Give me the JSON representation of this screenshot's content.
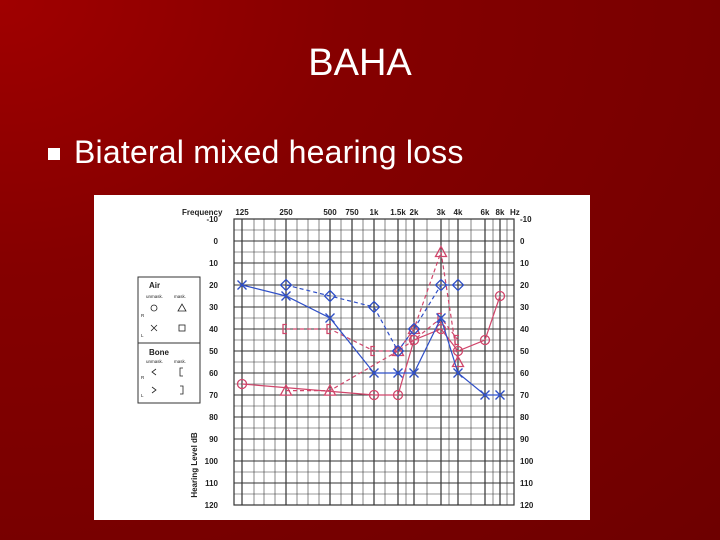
{
  "slide": {
    "title": "BAHA",
    "bullet": "Biateral mixed hearing loss"
  },
  "colors": {
    "background": "#850000",
    "right_ear": "#d0456a",
    "left_ear": "#2f4fc7",
    "grid": "#333333"
  },
  "chart_data": {
    "type": "line",
    "title": "",
    "xlabel": "Frequency",
    "ylabel": "Hearing Level dB",
    "x_unit": "Hz",
    "x_ticks": [
      "125",
      "250",
      "500",
      "750",
      "1k",
      "1.5k",
      "2k",
      "3k",
      "4k",
      "6k",
      "8k"
    ],
    "y_ticks": [
      -10,
      0,
      10,
      20,
      30,
      40,
      50,
      60,
      70,
      80,
      90,
      100,
      110,
      120
    ],
    "ylim": [
      -10,
      120
    ],
    "y_inverted": true,
    "grid": true,
    "legend": {
      "air_label": "Air",
      "bone_label": "Bone",
      "unmask_label": "unmask.",
      "mask_label": "mask.",
      "right_label": "R",
      "left_label": "L"
    },
    "series": [
      {
        "key": "right_air",
        "marker": "circle",
        "color_key": "right_ear",
        "points": [
          {
            "x": "125",
            "y": 65
          },
          {
            "x": "1k",
            "y": 70
          },
          {
            "x": "1.5k",
            "y": 70
          },
          {
            "x": "2k",
            "y": 45
          },
          {
            "x": "3k",
            "y": 40
          },
          {
            "x": "4k",
            "y": 50
          },
          {
            "x": "6k",
            "y": 45
          },
          {
            "x": "8k",
            "y": 25
          }
        ]
      },
      {
        "key": "right_air_masked",
        "marker": "triangle",
        "color_key": "right_ear",
        "points": [
          {
            "x": "250",
            "y": 68
          },
          {
            "x": "500",
            "y": 68
          },
          {
            "x": "1.5k",
            "y": 50
          },
          {
            "x": "2k",
            "y": 40
          },
          {
            "x": "3k",
            "y": 5
          },
          {
            "x": "4k",
            "y": 55
          }
        ]
      },
      {
        "key": "right_bone_masked",
        "marker": "bracket-left",
        "color_key": "right_ear",
        "points": [
          {
            "x": "250",
            "y": 40
          },
          {
            "x": "500",
            "y": 40
          },
          {
            "x": "1k",
            "y": 50
          },
          {
            "x": "1.5k",
            "y": 50
          },
          {
            "x": "2k",
            "y": 45
          },
          {
            "x": "3k",
            "y": 35
          },
          {
            "x": "4k",
            "y": 45
          }
        ]
      },
      {
        "key": "left_air",
        "marker": "x",
        "color_key": "left_ear",
        "points": [
          {
            "x": "125",
            "y": 20
          },
          {
            "x": "250",
            "y": 25
          },
          {
            "x": "500",
            "y": 35
          },
          {
            "x": "1k",
            "y": 60
          },
          {
            "x": "1.5k",
            "y": 60
          },
          {
            "x": "2k",
            "y": 60
          },
          {
            "x": "3k",
            "y": 35
          },
          {
            "x": "4k",
            "y": 60
          },
          {
            "x": "6k",
            "y": 70
          },
          {
            "x": "8k",
            "y": 70
          }
        ]
      },
      {
        "key": "left_air_masked",
        "marker": "square",
        "color_key": "left_ear",
        "points": [
          {
            "x": "250",
            "y": 20
          },
          {
            "x": "500",
            "y": 25
          },
          {
            "x": "1k",
            "y": 30
          },
          {
            "x": "1.5k",
            "y": 50
          },
          {
            "x": "2k",
            "y": 40
          },
          {
            "x": "3k",
            "y": 20
          },
          {
            "x": "4k",
            "y": 20
          }
        ]
      }
    ]
  }
}
